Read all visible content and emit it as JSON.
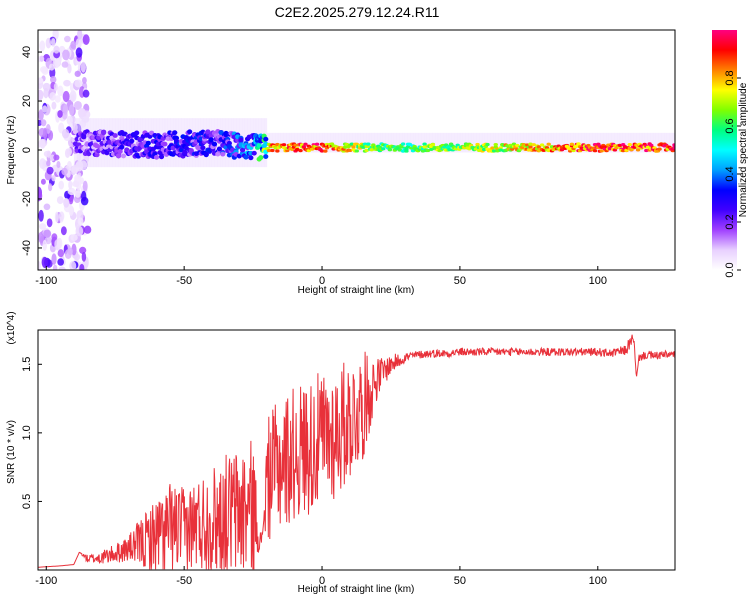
{
  "figure": {
    "title": "C2E2.2025.279.12.24.R11"
  },
  "chart_data": [
    {
      "type": "heatmap",
      "title": "C2E2.2025.279.12.24.R11",
      "xlabel": "Height of straight line (km)",
      "ylabel": "Frequency (Hz)",
      "xlim": [
        -103,
        128
      ],
      "ylim": [
        -49,
        49
      ],
      "x_ticks": [
        -100,
        -50,
        0,
        50,
        100
      ],
      "y_ticks": [
        -40,
        -20,
        0,
        20,
        40
      ],
      "colorbar": {
        "label": "Normalized spectral amplitude",
        "range": [
          0,
          1
        ],
        "ticks": [
          0.0,
          0.2,
          0.4,
          0.6,
          0.8
        ],
        "colormap": [
          "#ffffff",
          "#e8d0ff",
          "#a040ff",
          "#4000ff",
          "#0000ff",
          "#00a0ff",
          "#00ffff",
          "#00ff80",
          "#80ff00",
          "#ffff00",
          "#ff8000",
          "#ff0000",
          "#ff0080"
        ]
      },
      "ridge": {
        "description_x": [
          -90,
          -60,
          -40,
          -25,
          -20,
          0,
          20,
          60,
          100,
          128
        ],
        "peak_frequency_hz": [
          3,
          2,
          3,
          1,
          1,
          1,
          1,
          1,
          1,
          1
        ],
        "peak_amplitude": [
          0.2,
          0.3,
          0.3,
          0.4,
          0.8,
          0.9,
          0.6,
          0.7,
          0.9,
          0.9
        ]
      },
      "noise_region_x": [
        -103,
        -85
      ]
    },
    {
      "type": "line",
      "title": "",
      "xlabel": "Height of straight line (km)",
      "ylabel": "SNR (10 * v/v)",
      "y_multiplier": "(x10^4)",
      "xlim": [
        -103,
        128
      ],
      "ylim": [
        0,
        17500
      ],
      "x_ticks": [
        -100,
        -50,
        0,
        50,
        100
      ],
      "y_ticks": [
        5000,
        10000,
        15000
      ],
      "y_tick_labels": [
        "0.5",
        "1.0",
        "1.5"
      ],
      "series": [
        {
          "color": "#e8313a",
          "x": [
            -103,
            -95,
            -90,
            -88,
            -85,
            -80,
            -75,
            -70,
            -65,
            -60,
            -55,
            -50,
            -45,
            -40,
            -35,
            -30,
            -25,
            -22,
            -20,
            -15,
            -10,
            -5,
            0,
            5,
            10,
            15,
            20,
            25,
            30,
            35,
            40,
            45,
            50,
            60,
            70,
            80,
            90,
            100,
            105,
            110,
            113,
            114,
            115,
            118,
            120,
            125,
            128
          ],
          "y": [
            200,
            300,
            400,
            1300,
            800,
            900,
            1200,
            1600,
            2000,
            2400,
            3000,
            3000,
            3400,
            3600,
            4000,
            4200,
            4600,
            2000,
            6500,
            7800,
            8500,
            9000,
            9500,
            10000,
            11000,
            12000,
            14000,
            15000,
            15500,
            15700,
            15800,
            15800,
            15900,
            15900,
            15900,
            15900,
            15900,
            15900,
            15800,
            16000,
            17000,
            14000,
            15500,
            15700,
            15600,
            15700,
            15700
          ],
          "noise_amplitude": [
            0,
            0,
            0,
            0,
            300,
            500,
            700,
            1000,
            2000,
            3000,
            3500,
            3000,
            3500,
            4000,
            4500,
            5000,
            5000,
            0,
            4500,
            5000,
            5000,
            5000,
            5000,
            5000,
            4500,
            4000,
            1500,
            700,
            400,
            300,
            300,
            300,
            300,
            300,
            300,
            300,
            300,
            300,
            300,
            400,
            500,
            0,
            300,
            300,
            300,
            300,
            300
          ]
        }
      ]
    }
  ]
}
